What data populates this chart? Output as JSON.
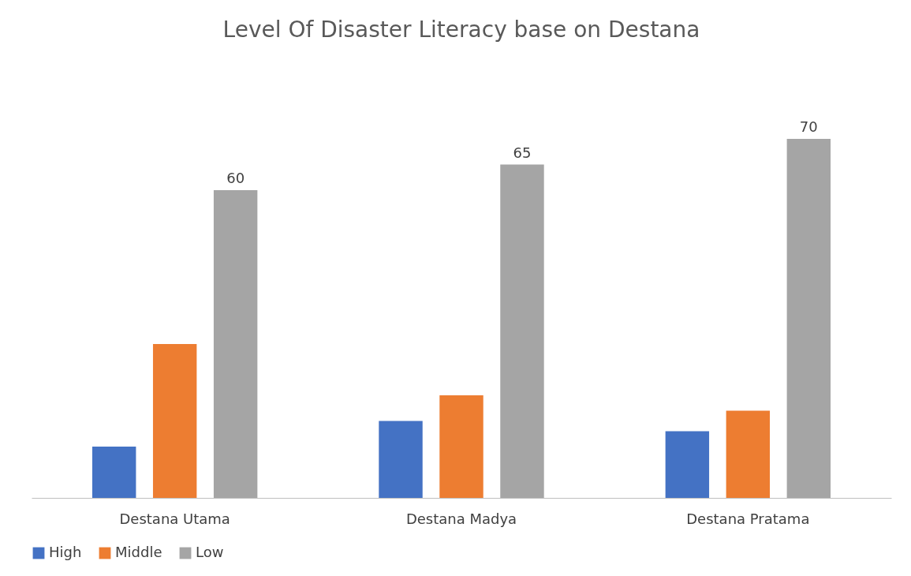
{
  "chart_data": {
    "type": "bar",
    "title": "Level Of Disaster Literacy base on Destana",
    "categories": [
      "Destana Utama",
      "Destana Madya",
      "Destana Pratama"
    ],
    "series": [
      {
        "name": "High",
        "color": "#4472c4",
        "values": [
          10,
          15,
          13
        ]
      },
      {
        "name": "Middle",
        "color": "#ed7d31",
        "values": [
          30,
          20,
          17
        ]
      },
      {
        "name": "Low",
        "color": "#a5a5a5",
        "values": [
          60,
          65,
          70
        ],
        "value_labels": [
          "60",
          "65",
          "70"
        ]
      }
    ],
    "legend": "bottom",
    "grid": false
  }
}
